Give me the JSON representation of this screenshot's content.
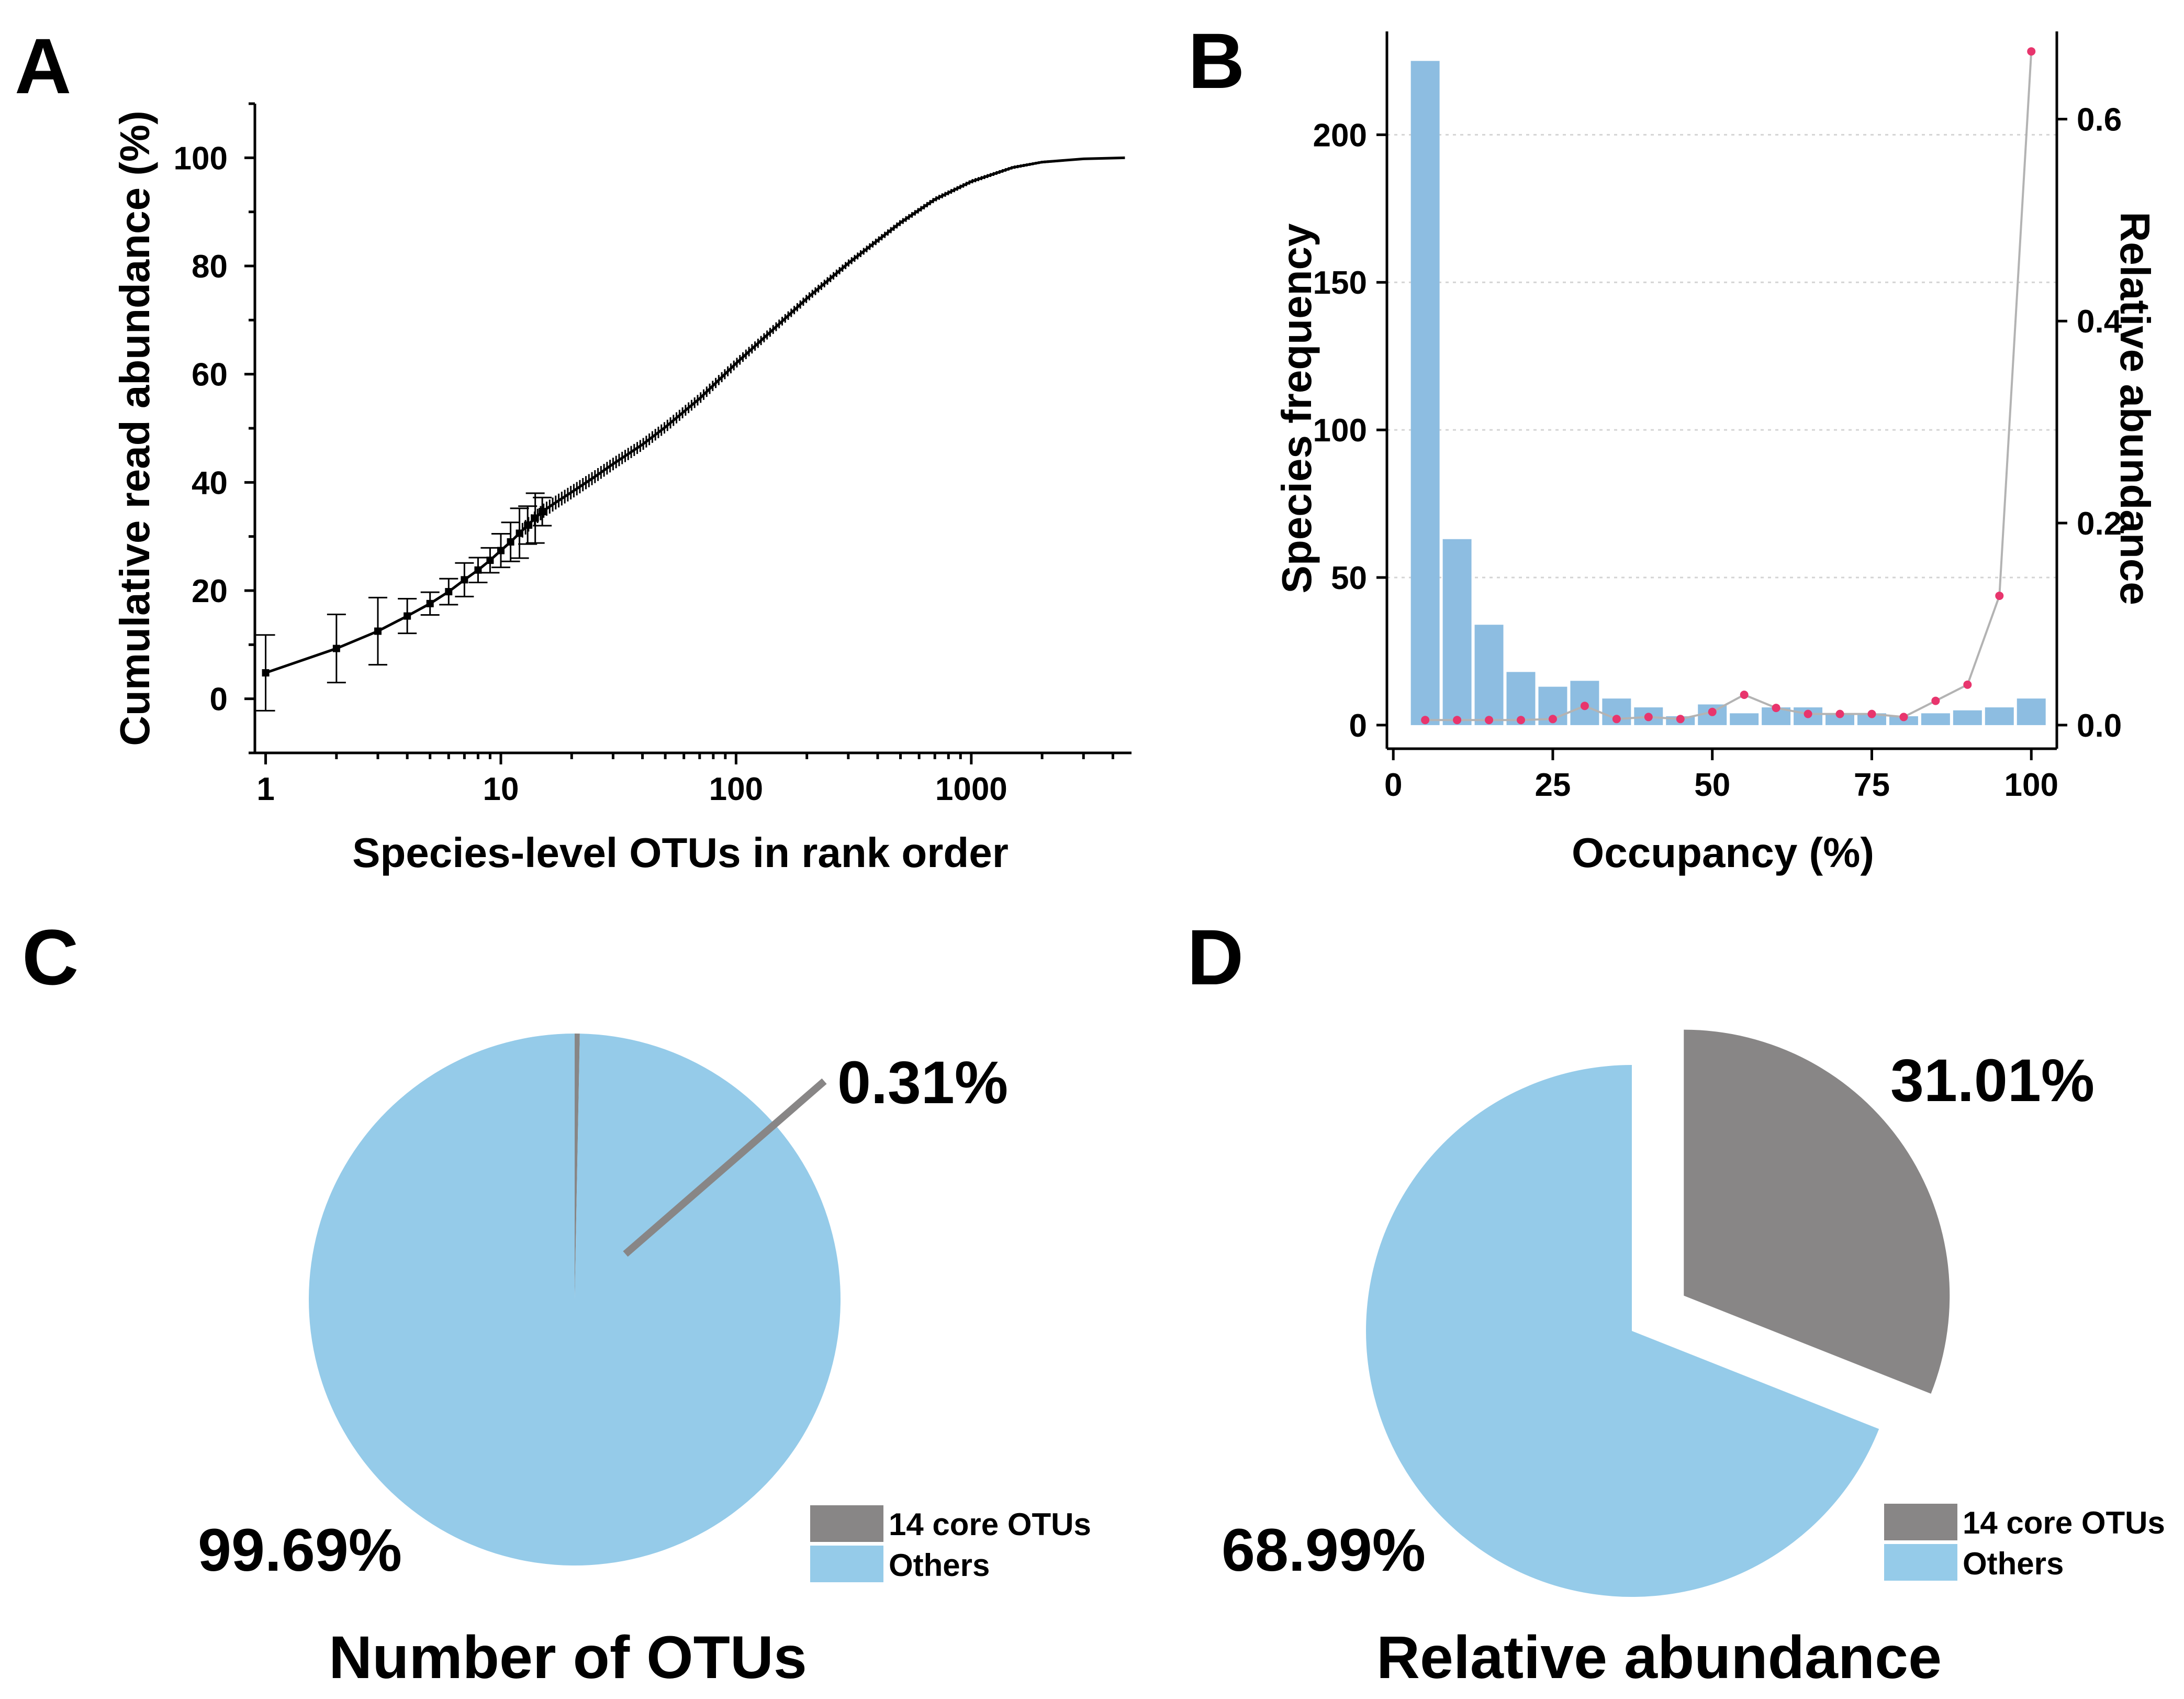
{
  "panels": {
    "a": {
      "letter": "A",
      "chart_data": {
        "type": "scatter",
        "title": "",
        "xlabel": "Species-level OTUs in rank order",
        "ylabel": "Cumulative read abundance (%)",
        "xscale": "log",
        "xlim": [
          0.9,
          4800
        ],
        "ylim": [
          -10,
          110
        ],
        "x_ticks": [
          1,
          10,
          100,
          1000
        ],
        "x_tick_labels": [
          "1",
          "10",
          "100",
          "1000"
        ],
        "y_ticks": [
          0,
          20,
          40,
          60,
          80,
          100
        ],
        "y_tick_labels": [
          "0",
          "20",
          "40",
          "60",
          "80",
          "100"
        ],
        "points": [
          {
            "x": 1,
            "y": 4.8,
            "err": 7
          },
          {
            "x": 2,
            "y": 9.3,
            "err": 6.3
          },
          {
            "x": 3,
            "y": 12.5,
            "err": 6.2
          },
          {
            "x": 4,
            "y": 15.3,
            "err": 3.2
          },
          {
            "x": 5,
            "y": 17.6,
            "err": 2.1
          },
          {
            "x": 6,
            "y": 19.8,
            "err": 2.4
          },
          {
            "x": 7,
            "y": 22.0,
            "err": 3.1
          },
          {
            "x": 8,
            "y": 23.8,
            "err": 2.3
          },
          {
            "x": 9,
            "y": 25.6,
            "err": 2.3
          },
          {
            "x": 10,
            "y": 27.4,
            "err": 3.1
          },
          {
            "x": 11,
            "y": 29.0,
            "err": 3.6
          },
          {
            "x": 12,
            "y": 30.6,
            "err": 4.6
          },
          {
            "x": 13,
            "y": 32.1,
            "err": 3.5
          },
          {
            "x": 14,
            "y": 33.4,
            "err": 4.6
          },
          {
            "x": 15,
            "y": 34.6,
            "err": 2.6
          },
          {
            "x": 17,
            "y": 36.2,
            "err": 1.8
          },
          {
            "x": 20,
            "y": 38.2,
            "err": 2.0
          },
          {
            "x": 25,
            "y": 41.0,
            "err": 1.9
          },
          {
            "x": 30,
            "y": 43.4,
            "err": 1.8
          },
          {
            "x": 40,
            "y": 47.0,
            "err": 1.6
          },
          {
            "x": 50,
            "y": 50.2,
            "err": 1.5
          },
          {
            "x": 70,
            "y": 55.5,
            "err": 1.4
          },
          {
            "x": 100,
            "y": 62.0,
            "err": 1.3
          },
          {
            "x": 150,
            "y": 69.0,
            "err": 1.0
          },
          {
            "x": 200,
            "y": 74.0,
            "err": 0.9
          },
          {
            "x": 300,
            "y": 80.5,
            "err": 0.7
          },
          {
            "x": 500,
            "y": 88.0,
            "err": 0.5
          },
          {
            "x": 700,
            "y": 92.3,
            "err": 0.4
          },
          {
            "x": 1000,
            "y": 95.6,
            "err": 0.3
          },
          {
            "x": 1500,
            "y": 98.2,
            "err": 0.2
          },
          {
            "x": 2000,
            "y": 99.2,
            "err": 0.2
          },
          {
            "x": 3000,
            "y": 99.8,
            "err": 0.1
          },
          {
            "x": 4500,
            "y": 100.0,
            "err": 0.1
          }
        ]
      }
    },
    "b": {
      "letter": "B",
      "chart_data": {
        "type": "bar",
        "title": "",
        "xlabel": "Occupancy (%)",
        "ylabel": "Species frequency",
        "y2label": "Relative abundance",
        "xlim": [
          -1,
          104
        ],
        "ylim": [
          -8,
          235
        ],
        "y2lim": [
          -0.0234,
          0.6868
        ],
        "x_ticks": [
          0,
          25,
          50,
          75,
          100
        ],
        "x_tick_labels": [
          "0",
          "25",
          "50",
          "75",
          "100"
        ],
        "y_ticks": [
          0,
          50,
          100,
          150,
          200
        ],
        "y_tick_labels": [
          "0",
          "50",
          "100",
          "150",
          "200"
        ],
        "y2_ticks": [
          0.0,
          0.2,
          0.4,
          0.6
        ],
        "y2_tick_labels": [
          "0.0",
          "0.2",
          "0.4",
          "0.6"
        ],
        "grid": true,
        "bar_color": "#8dbde1",
        "line_color": "#b3b3b3",
        "point_color": "#e8356d",
        "occupancy": [
          5,
          10,
          15,
          20,
          25,
          30,
          35,
          40,
          45,
          50,
          55,
          60,
          65,
          70,
          75,
          80,
          85,
          90,
          95,
          100
        ],
        "series": [
          {
            "name": "Species frequency",
            "axis": "left",
            "values": [
              225,
              63,
              34,
              18,
              13,
              15,
              9,
              6,
              3,
              7,
              4,
              6,
              6,
              4,
              4,
              3,
              4,
              5,
              6,
              9
            ]
          },
          {
            "name": "Relative abundance",
            "axis": "right",
            "values": [
              0.005,
              0.005,
              0.005,
              0.005,
              0.006,
              0.019,
              0.006,
              0.008,
              0.006,
              0.013,
              0.03,
              0.017,
              0.011,
              0.011,
              0.011,
              0.008,
              0.024,
              0.04,
              0.128,
              0.667
            ]
          }
        ]
      }
    },
    "c": {
      "letter": "C",
      "title": "Number of OTUs",
      "chart_data": {
        "type": "pie",
        "title": "Number of OTUs",
        "slices": [
          {
            "label": "14 core OTUs",
            "value": 0.31,
            "text": "0.31%",
            "color": "#888686",
            "exploded": false
          },
          {
            "label": "Others",
            "value": 99.69,
            "text": "99.69%",
            "color": "#95cbe9",
            "exploded": false
          }
        ]
      },
      "legend": [
        "14 core OTUs",
        "Others"
      ]
    },
    "d": {
      "letter": "D",
      "title": "Relative abundance",
      "chart_data": {
        "type": "pie",
        "title": "Relative abundance",
        "slices": [
          {
            "label": "14 core OTUs",
            "value": 31.01,
            "text": "31.01%",
            "color": "#888686",
            "exploded": true
          },
          {
            "label": "Others",
            "value": 68.99,
            "text": "68.99%",
            "color": "#95cbe9",
            "exploded": false
          }
        ]
      },
      "legend": [
        "14 core OTUs",
        "Others"
      ]
    }
  }
}
